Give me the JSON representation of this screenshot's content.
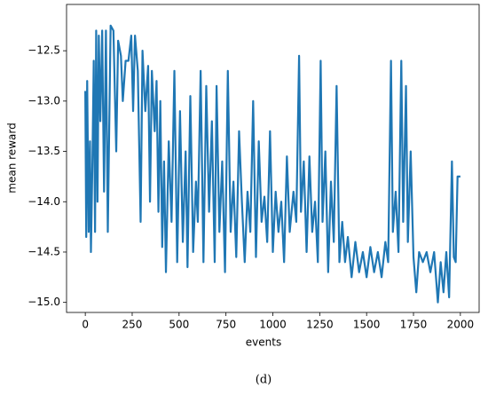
{
  "chart_data": {
    "type": "line",
    "xlabel": "events",
    "ylabel": "mean reward",
    "caption": "(d)",
    "color": "#1f77b4",
    "xlim": [
      -100,
      2100
    ],
    "xticks": [
      0,
      250,
      500,
      750,
      1000,
      1250,
      1500,
      1750,
      2000
    ],
    "ylim": [
      -15.1,
      -12.04
    ],
    "yticks": [
      {
        "value": -12.5,
        "label": "−12.5"
      },
      {
        "value": -13.0,
        "label": "−13.0"
      },
      {
        "value": -13.5,
        "label": "−13.5"
      },
      {
        "value": -14.0,
        "label": "−14.0"
      },
      {
        "value": -14.5,
        "label": "−14.5"
      },
      {
        "value": -15.0,
        "label": "−15.0"
      }
    ],
    "x": [
      0,
      5,
      10,
      18,
      25,
      30,
      38,
      45,
      52,
      58,
      65,
      72,
      80,
      90,
      100,
      110,
      120,
      135,
      150,
      165,
      175,
      190,
      200,
      215,
      230,
      245,
      255,
      265,
      280,
      295,
      305,
      320,
      335,
      345,
      355,
      370,
      380,
      390,
      400,
      410,
      420,
      430,
      445,
      460,
      475,
      490,
      505,
      520,
      535,
      545,
      560,
      575,
      590,
      600,
      615,
      630,
      645,
      660,
      675,
      690,
      700,
      715,
      730,
      745,
      760,
      775,
      790,
      805,
      820,
      835,
      850,
      865,
      880,
      895,
      910,
      925,
      940,
      955,
      970,
      985,
      1000,
      1015,
      1030,
      1045,
      1060,
      1075,
      1090,
      1110,
      1125,
      1140,
      1150,
      1165,
      1180,
      1195,
      1210,
      1225,
      1240,
      1255,
      1265,
      1280,
      1295,
      1310,
      1325,
      1340,
      1355,
      1370,
      1385,
      1400,
      1420,
      1440,
      1460,
      1480,
      1500,
      1520,
      1540,
      1560,
      1580,
      1600,
      1615,
      1630,
      1640,
      1655,
      1670,
      1685,
      1695,
      1710,
      1720,
      1735,
      1750,
      1765,
      1780,
      1800,
      1820,
      1840,
      1860,
      1880,
      1895,
      1910,
      1925,
      1940,
      1955,
      1965,
      1975,
      1985,
      2000
    ],
    "values": [
      -12.9,
      -14.35,
      -12.8,
      -14.3,
      -13.4,
      -14.5,
      -13.6,
      -12.6,
      -14.3,
      -12.3,
      -14.0,
      -12.35,
      -13.2,
      -12.3,
      -13.9,
      -12.3,
      -14.3,
      -12.25,
      -12.3,
      -13.5,
      -12.4,
      -12.55,
      -13.0,
      -12.6,
      -12.6,
      -12.35,
      -13.1,
      -12.35,
      -12.7,
      -14.2,
      -12.5,
      -13.1,
      -12.65,
      -14.0,
      -12.7,
      -13.3,
      -12.8,
      -14.1,
      -13.0,
      -14.45,
      -13.6,
      -14.7,
      -13.4,
      -14.2,
      -12.7,
      -14.6,
      -13.1,
      -14.4,
      -13.5,
      -14.65,
      -12.95,
      -14.5,
      -13.8,
      -14.2,
      -12.7,
      -14.6,
      -12.85,
      -14.1,
      -13.2,
      -14.6,
      -12.85,
      -14.3,
      -13.6,
      -14.7,
      -12.7,
      -14.3,
      -13.8,
      -14.55,
      -13.3,
      -14.0,
      -14.6,
      -13.9,
      -14.3,
      -13.0,
      -14.55,
      -13.4,
      -14.2,
      -13.95,
      -14.4,
      -13.3,
      -14.5,
      -13.9,
      -14.3,
      -14.0,
      -14.6,
      -13.55,
      -14.3,
      -13.9,
      -14.2,
      -12.55,
      -14.1,
      -13.6,
      -14.5,
      -13.55,
      -14.3,
      -14.0,
      -14.6,
      -12.6,
      -14.2,
      -13.5,
      -14.7,
      -13.8,
      -14.4,
      -12.85,
      -14.6,
      -14.2,
      -14.6,
      -14.35,
      -14.75,
      -14.4,
      -14.7,
      -14.5,
      -14.75,
      -14.45,
      -14.7,
      -14.5,
      -14.75,
      -14.4,
      -14.6,
      -12.6,
      -14.3,
      -13.9,
      -14.5,
      -12.6,
      -14.2,
      -12.85,
      -14.4,
      -13.5,
      -14.55,
      -14.9,
      -14.5,
      -14.6,
      -14.5,
      -14.7,
      -14.5,
      -15.0,
      -14.6,
      -14.9,
      -14.5,
      -14.95,
      -13.6,
      -14.55,
      -14.6,
      -13.75,
      -13.75
    ]
  }
}
